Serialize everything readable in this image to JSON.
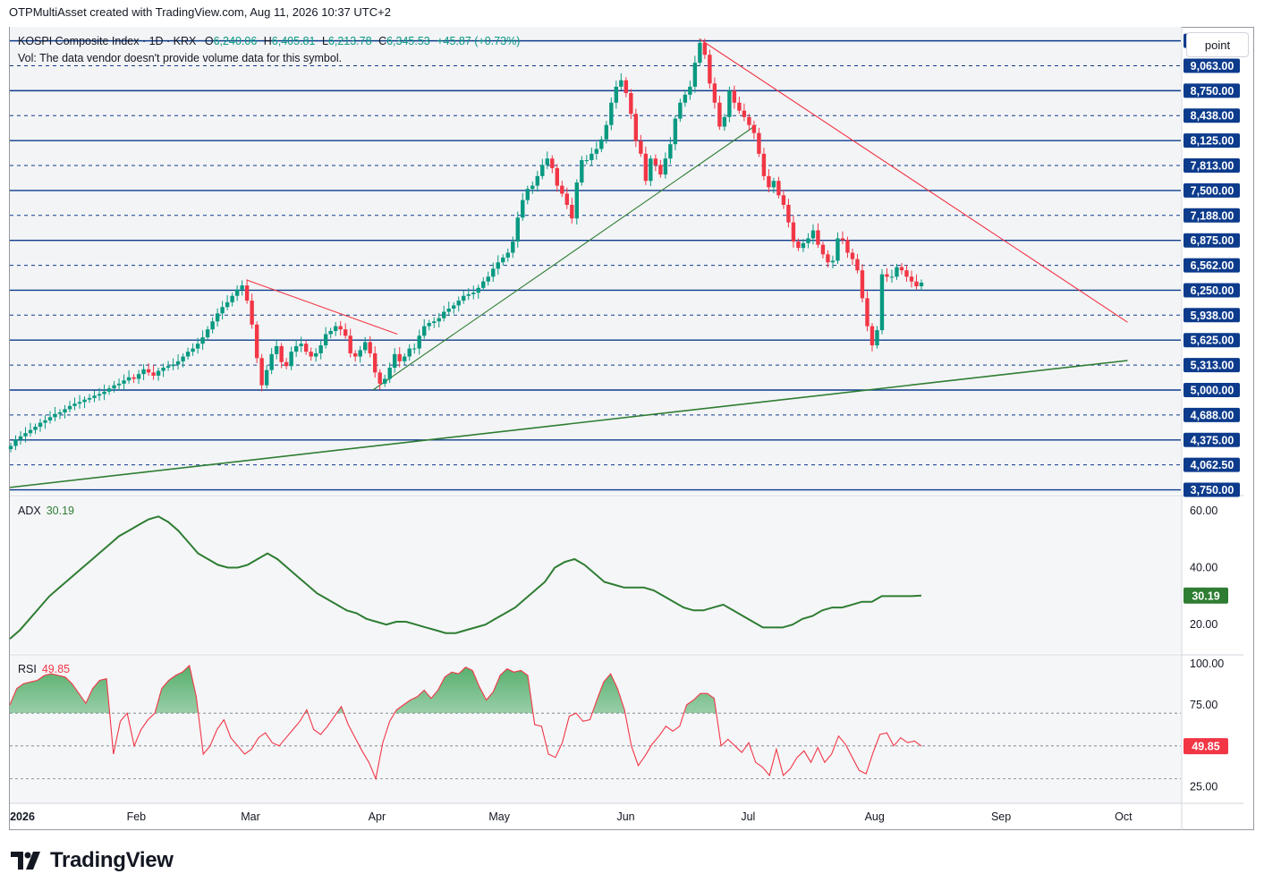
{
  "header": {
    "text": "OTPMultiAsset created with TradingView.com, Aug 11, 2026 10:37 UTC+2"
  },
  "symbol": {
    "name": "KOSPI Composite Index · 1D · KRX",
    "open_label": "O",
    "open": "6,240.06",
    "high_label": "H",
    "high": "6,405.81",
    "low_label": "L",
    "low": "6,213.78",
    "close_label": "C",
    "close": "6,345.53",
    "change": "+45.87 (+0.73%)",
    "volume_note": "Vol: The data vendor doesn't provide volume data for this symbol."
  },
  "scale_button": "point",
  "brand": "TradingView",
  "colors": {
    "up": "#089981",
    "down": "#f23645",
    "line_blue": "#0d3b8c",
    "trend_green": "#2e7d32",
    "trend_red": "#f23645",
    "adx": "#2e7d32",
    "rsi": "#f23645"
  },
  "chart_data": [
    {
      "type": "candlestick",
      "title": "KOSPI Composite Index · 1D · KRX",
      "x_axis_labels": [
        "2026",
        "Feb",
        "Mar",
        "Apr",
        "May",
        "Jun",
        "Jul",
        "Aug",
        "Sep",
        "Oct"
      ],
      "ylim": [
        3700,
        9550
      ],
      "horizontal_levels_solid": [
        "9,375.00",
        "8,750.00",
        "8,125.00",
        "7,500.00",
        "6,875.00",
        "6,250.00",
        "5,625.00",
        "5,000.00",
        "4,375.00",
        "3,750.00"
      ],
      "horizontal_levels_dashed": [
        "9,063.00",
        "8,438.00",
        "7,813.00",
        "7,188.00",
        "6,562.00",
        "5,938.00",
        "5,313.00",
        "4,688.00",
        "4,062.50"
      ],
      "close_series": [
        4300,
        4380,
        4420,
        4460,
        4500,
        4540,
        4590,
        4620,
        4660,
        4700,
        4720,
        4760,
        4800,
        4830,
        4850,
        4880,
        4900,
        4930,
        4950,
        4980,
        5020,
        5060,
        5080,
        5120,
        5160,
        5140,
        5200,
        5260,
        5220,
        5180,
        5240,
        5280,
        5300,
        5320,
        5360,
        5420,
        5480,
        5520,
        5580,
        5660,
        5760,
        5860,
        5960,
        6040,
        6100,
        6180,
        6260,
        6310,
        6120,
        5820,
        5400,
        5060,
        5250,
        5450,
        5550,
        5350,
        5300,
        5480,
        5550,
        5580,
        5480,
        5420,
        5460,
        5560,
        5700,
        5740,
        5800,
        5760,
        5680,
        5460,
        5420,
        5500,
        5600,
        5460,
        5220,
        5080,
        5140,
        5280,
        5450,
        5360,
        5420,
        5520,
        5520,
        5680,
        5800,
        5840,
        5860,
        5900,
        5980,
        6020,
        6060,
        6120,
        6180,
        6200,
        6220,
        6280,
        6360,
        6420,
        6520,
        6600,
        6660,
        6720,
        6860,
        7160,
        7380,
        7520,
        7560,
        7680,
        7820,
        7900,
        7780,
        7560,
        7460,
        7320,
        7150,
        7600,
        7880,
        7880,
        7960,
        8020,
        8140,
        8320,
        8600,
        8800,
        8880,
        8720,
        8460,
        8120,
        7960,
        7620,
        7900,
        7820,
        7700,
        7900,
        8080,
        8400,
        8600,
        8700,
        8800,
        9100,
        9350,
        9200,
        8840,
        8600,
        8300,
        8420,
        8750,
        8600,
        8500,
        8420,
        8320,
        8220,
        7960,
        7680,
        7540,
        7620,
        7440,
        7320,
        7100,
        6860,
        6780,
        6840,
        6900,
        7000,
        6820,
        6700,
        6600,
        6620,
        6900,
        6880,
        6720,
        6640,
        6500,
        6150,
        5800,
        5560,
        5750,
        6450,
        6420,
        6420,
        6540,
        6500,
        6420,
        6360,
        6300,
        6345.53
      ],
      "trendlines": [
        {
          "color": "red",
          "from": {
            "date": "Feb 28",
            "value": 6380
          },
          "to": {
            "date": "Apr 6",
            "value": 5700
          }
        },
        {
          "color": "green",
          "from": {
            "date": "Mar 31",
            "value": 5000
          },
          "to": {
            "date": "Jul 3",
            "value": 8320
          }
        },
        {
          "color": "red",
          "from": {
            "date": "Jun 19",
            "value": 9400
          },
          "to": {
            "date": "Oct 2",
            "value": 5850
          }
        },
        {
          "color": "green",
          "from": {
            "date": "Jan 1",
            "value": 3780
          },
          "to": {
            "date": "Oct 2",
            "value": 5370
          }
        }
      ]
    },
    {
      "type": "line",
      "title": "ADX",
      "current": "30.19",
      "ylim": [
        10,
        65
      ],
      "tick_labels": [
        "60.00",
        "40.00",
        "20.00"
      ],
      "values": [
        15,
        18,
        22,
        26,
        30,
        33,
        36,
        39,
        42,
        45,
        48,
        51,
        53,
        55,
        57,
        58,
        56,
        53,
        49,
        45,
        43,
        41,
        40,
        40,
        41,
        43,
        45,
        43,
        40,
        37,
        34,
        31,
        29,
        27,
        25,
        24,
        22,
        21,
        20,
        21,
        21,
        20,
        19,
        18,
        17,
        17,
        18,
        19,
        20,
        22,
        24,
        26,
        29,
        32,
        35,
        40,
        42,
        43,
        41,
        38,
        35,
        34,
        33,
        33,
        33,
        32,
        30,
        28,
        26,
        25,
        25,
        26,
        27,
        25,
        23,
        21,
        19,
        19,
        19,
        20,
        22,
        23,
        25,
        26,
        26,
        27,
        28,
        28,
        30,
        30,
        30,
        30,
        30.19
      ]
    },
    {
      "type": "line",
      "title": "RSI",
      "current": "49.85",
      "ylim": [
        15,
        105
      ],
      "tick_labels": [
        "100.00",
        "75.00",
        "50.00",
        "25.00"
      ],
      "bands": {
        "upper": 70,
        "middle": 50,
        "lower": 30
      },
      "values": [
        75,
        85,
        88,
        89,
        90,
        93,
        94,
        93,
        92,
        88,
        82,
        76,
        85,
        90,
        91,
        45,
        65,
        70,
        50,
        60,
        66,
        70,
        85,
        90,
        93,
        95,
        99,
        80,
        45,
        50,
        60,
        66,
        55,
        50,
        45,
        48,
        55,
        58,
        52,
        50,
        55,
        60,
        65,
        72,
        60,
        57,
        62,
        68,
        74,
        63,
        55,
        47,
        40,
        30,
        52,
        65,
        72,
        75,
        78,
        80,
        84,
        79,
        84,
        92,
        95,
        94,
        98,
        96,
        86,
        78,
        83,
        93,
        97,
        95,
        96,
        93,
        63,
        62,
        45,
        43,
        52,
        68,
        70,
        65,
        66,
        78,
        89,
        94,
        85,
        72,
        50,
        38,
        44,
        51,
        56,
        62,
        59,
        62,
        75,
        78,
        82,
        82,
        79,
        50,
        54,
        50,
        46,
        52,
        40,
        37,
        32,
        48,
        32,
        36,
        43,
        47,
        40,
        49,
        40,
        45,
        56,
        51,
        43,
        35,
        33,
        46,
        57,
        58,
        50,
        55,
        52,
        53,
        49.85
      ]
    }
  ]
}
